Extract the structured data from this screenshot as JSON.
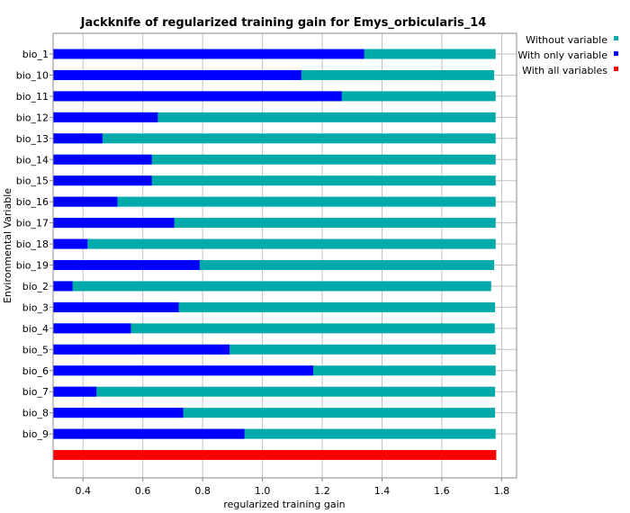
{
  "chart_data": {
    "type": "bar",
    "orientation": "horizontal",
    "title": "Jackknife of regularized training gain for Emys_orbicularis_14",
    "xlabel": "regularized training gain",
    "ylabel": "Environmental Variable",
    "xlim": [
      0.3,
      1.85
    ],
    "xticks": [
      0.4,
      0.6,
      0.8,
      1.0,
      1.2,
      1.4,
      1.6,
      1.8
    ],
    "xtick_labels": [
      "0.4",
      "0.6",
      "0.8",
      "1.0",
      "1.2",
      "1.4",
      "1.6",
      "1.8"
    ],
    "grid": true,
    "legend_position": "top-right",
    "categories": [
      "bio_1",
      "bio_10",
      "bio_11",
      "bio_12",
      "bio_13",
      "bio_14",
      "bio_15",
      "bio_16",
      "bio_17",
      "bio_18",
      "bio_19",
      "bio_2",
      "bio_3",
      "bio_4",
      "bio_5",
      "bio_6",
      "bio_7",
      "bio_8",
      "bio_9"
    ],
    "series": [
      {
        "name": "Without variable",
        "color": "#00aaaa",
        "values": [
          1.78,
          1.775,
          1.78,
          1.78,
          1.78,
          1.78,
          1.78,
          1.78,
          1.78,
          1.78,
          1.775,
          1.765,
          1.778,
          1.777,
          1.78,
          1.78,
          1.778,
          1.778,
          1.78
        ]
      },
      {
        "name": "With only variable",
        "color": "#0000ff",
        "values": [
          1.34,
          1.13,
          1.265,
          0.65,
          0.465,
          0.63,
          0.63,
          0.515,
          0.705,
          0.415,
          0.79,
          0.365,
          0.72,
          0.56,
          0.89,
          1.17,
          0.445,
          0.735,
          0.94
        ]
      },
      {
        "name": "With all variables",
        "color": "#ff0000",
        "value": 1.782
      }
    ]
  }
}
